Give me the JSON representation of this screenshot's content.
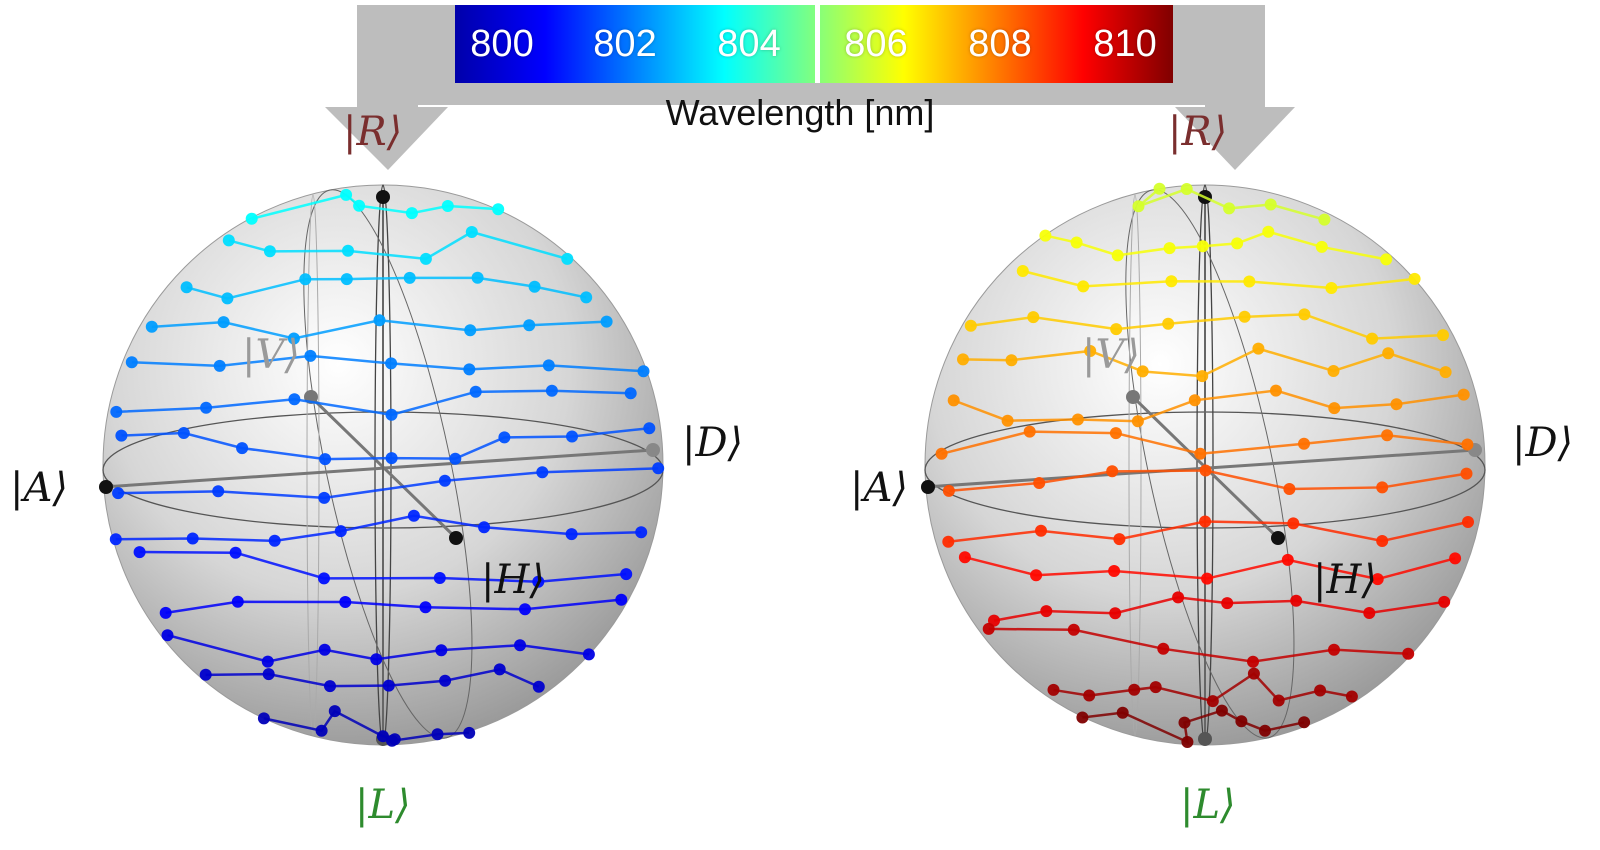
{
  "colorbar": {
    "label": "Wavelength [nm]",
    "ticks": [
      "800",
      "802",
      "804",
      "806",
      "808",
      "810"
    ],
    "stops": [
      "#0000aa",
      "#0000ff",
      "#0080ff",
      "#00ffff",
      "#80ff80",
      "#ffff00",
      "#ff8000",
      "#ff0000",
      "#800000"
    ]
  },
  "spheres": [
    {
      "labels": {
        "top": "|R⟩",
        "bottom": "|L⟩",
        "left": "|A⟩",
        "right": "|D⟩",
        "front": "|H⟩",
        "back": "|V⟩"
      }
    },
    {
      "labels": {
        "top": "|R⟩",
        "bottom": "|L⟩",
        "left": "|A⟩",
        "right": "|D⟩",
        "front": "|H⟩",
        "back": "|V⟩"
      }
    }
  ],
  "colors": {
    "top_label": "#7a2e2e",
    "bottom_label": "#2e8b2e",
    "back_label": "#9a9a9a",
    "axis_label": "#111111",
    "arrow": "#bdbdbd"
  }
}
